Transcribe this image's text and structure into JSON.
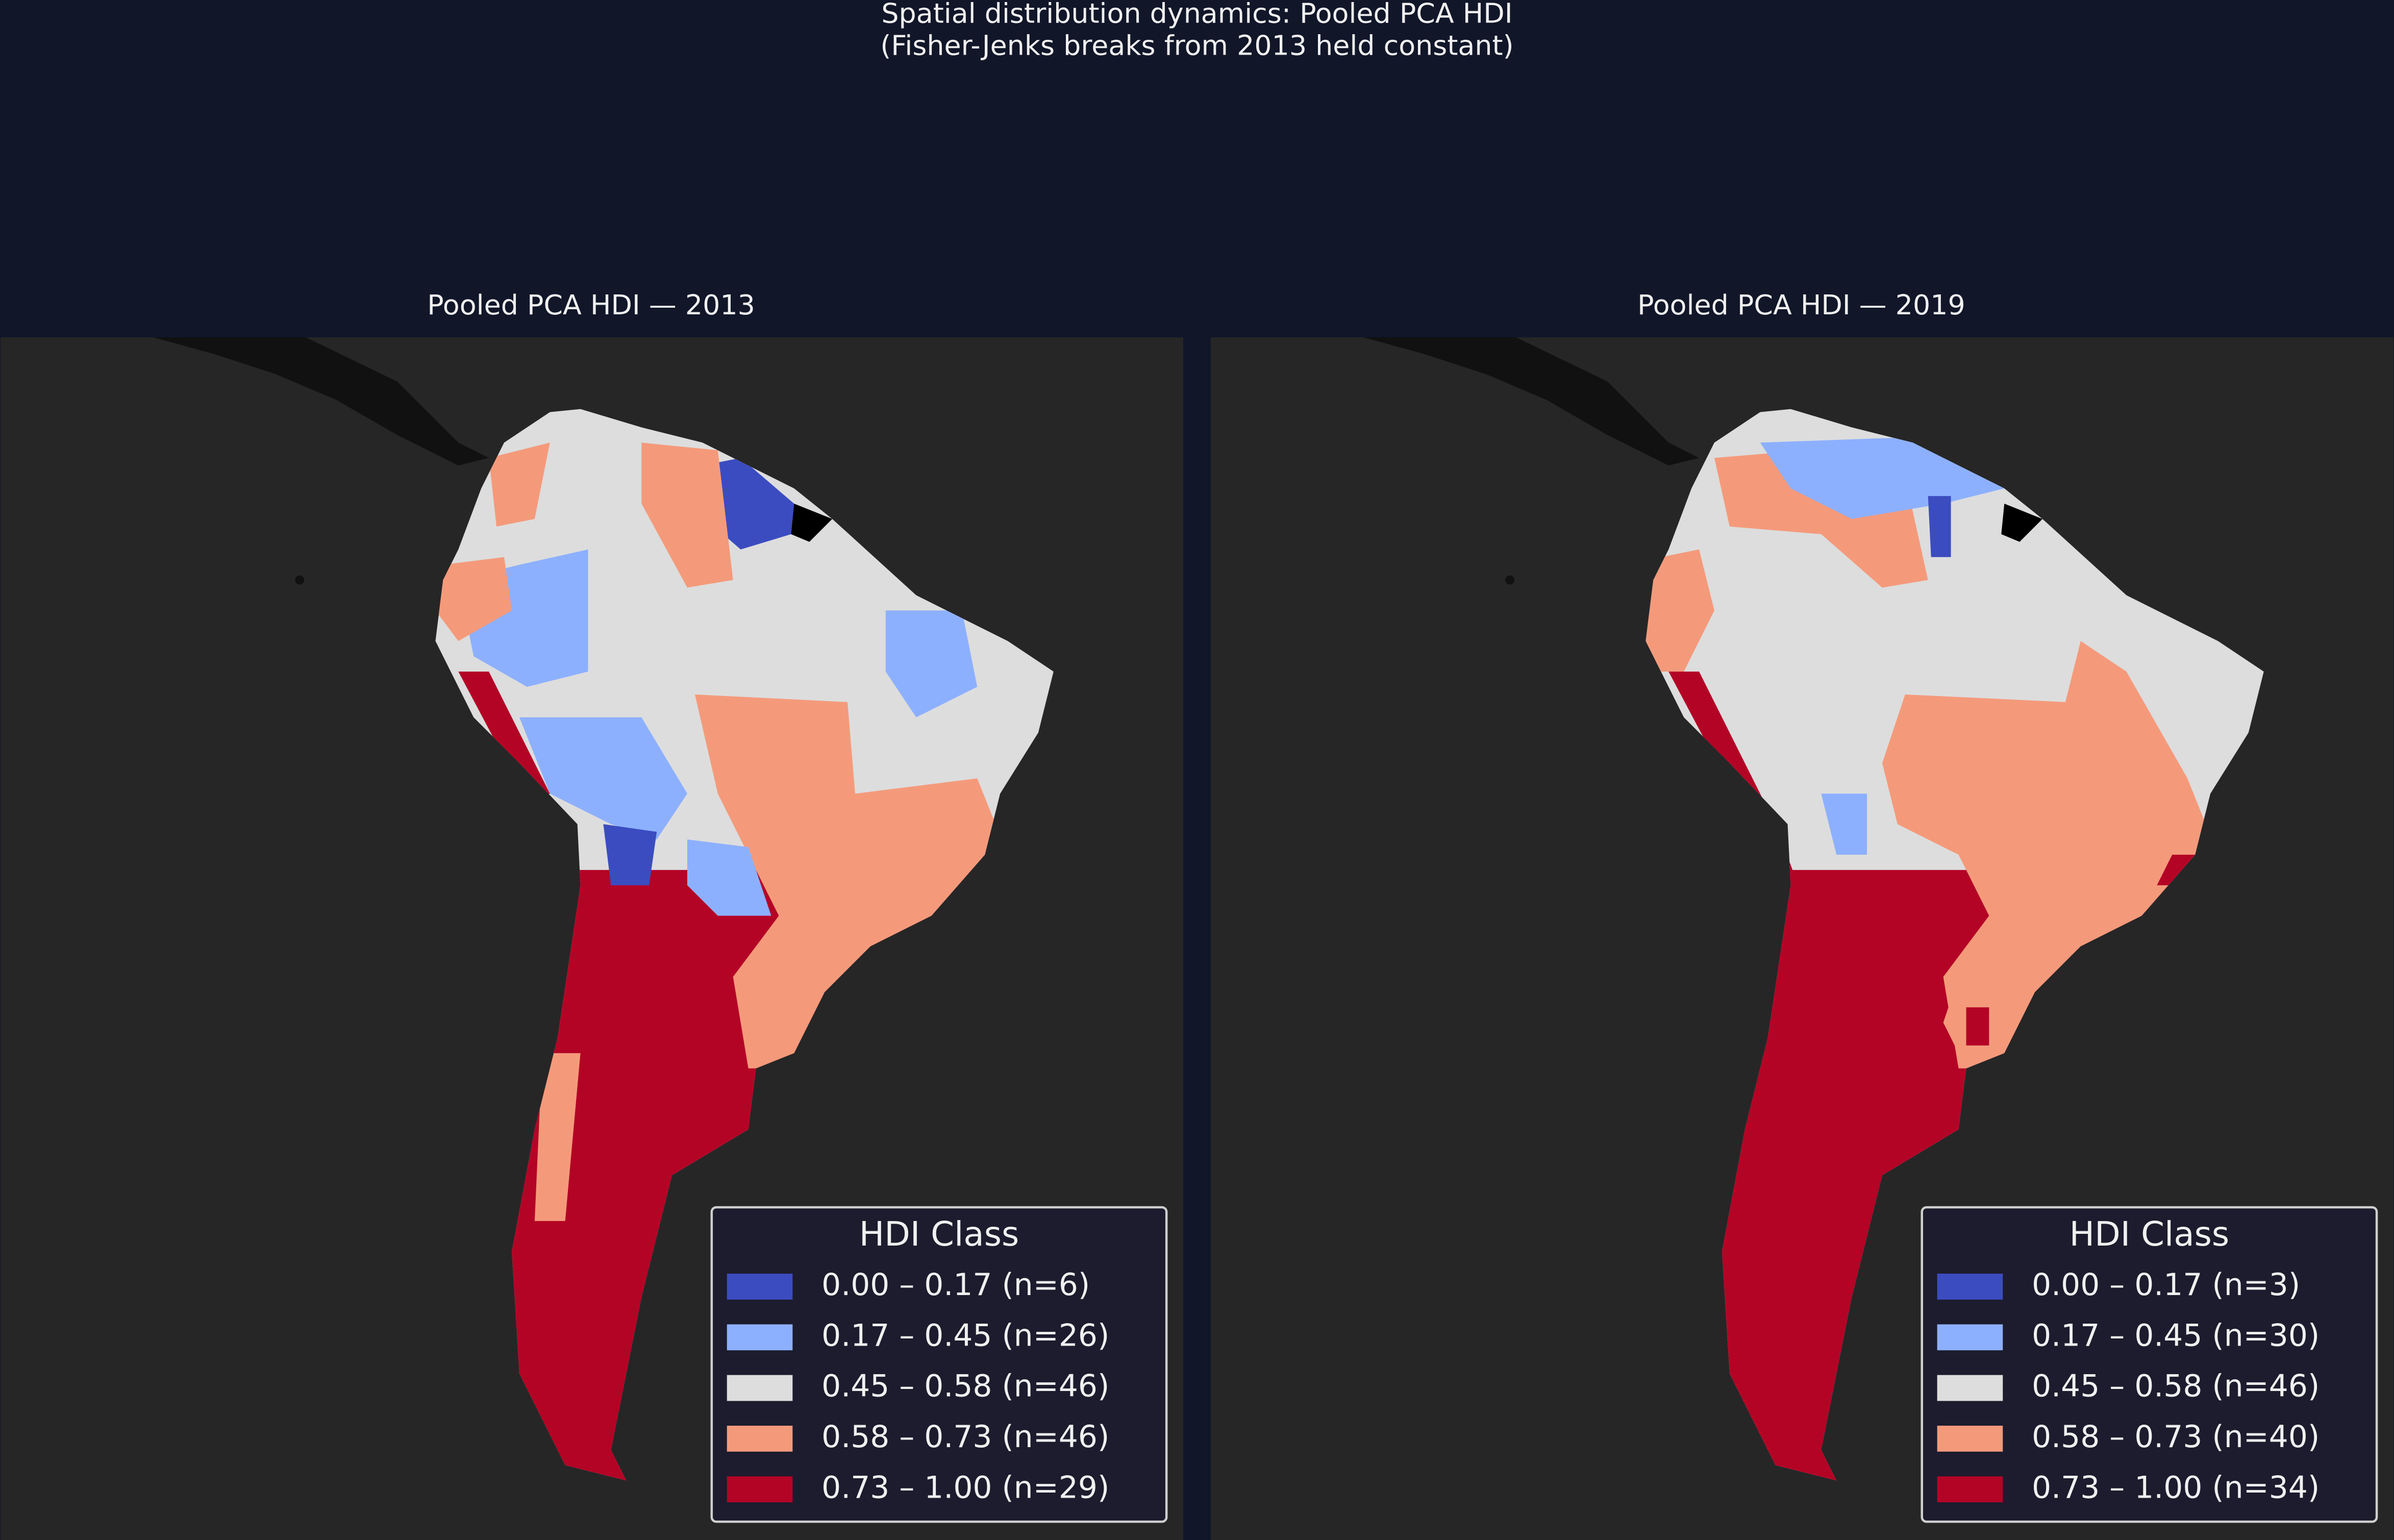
{
  "header": {
    "title_lines": [
      "Spatial distribution dynamics: Pooled PCA HDI",
      "(Fisher-Jenks breaks from 2013 held constant)"
    ]
  },
  "panels": [
    {
      "title": "Pooled PCA HDI — 2013",
      "legend": {
        "title": "HDI Class",
        "entries": [
          {
            "label": "0.00 – 0.17  (n=6)",
            "color": "#3b4cc0"
          },
          {
            "label": "0.17 – 0.45  (n=26)",
            "color": "#8db0fe"
          },
          {
            "label": "0.45 – 0.58  (n=46)",
            "color": "#dddddd"
          },
          {
            "label": "0.58 – 0.73  (n=46)",
            "color": "#f49a7b"
          },
          {
            "label": "0.73 – 1.00  (n=29)",
            "color": "#b40426"
          }
        ]
      }
    },
    {
      "title": "Pooled PCA HDI — 2019",
      "legend": {
        "title": "HDI Class",
        "entries": [
          {
            "label": "0.00 – 0.17  (n=3)",
            "color": "#3b4cc0"
          },
          {
            "label": "0.17 – 0.45  (n=30)",
            "color": "#8db0fe"
          },
          {
            "label": "0.45 – 0.58  (n=46)",
            "color": "#dddddd"
          },
          {
            "label": "0.58 – 0.73  (n=40)",
            "color": "#f49a7b"
          },
          {
            "label": "0.73 – 1.00  (n=34)",
            "color": "#b40426"
          }
        ]
      }
    }
  ]
}
